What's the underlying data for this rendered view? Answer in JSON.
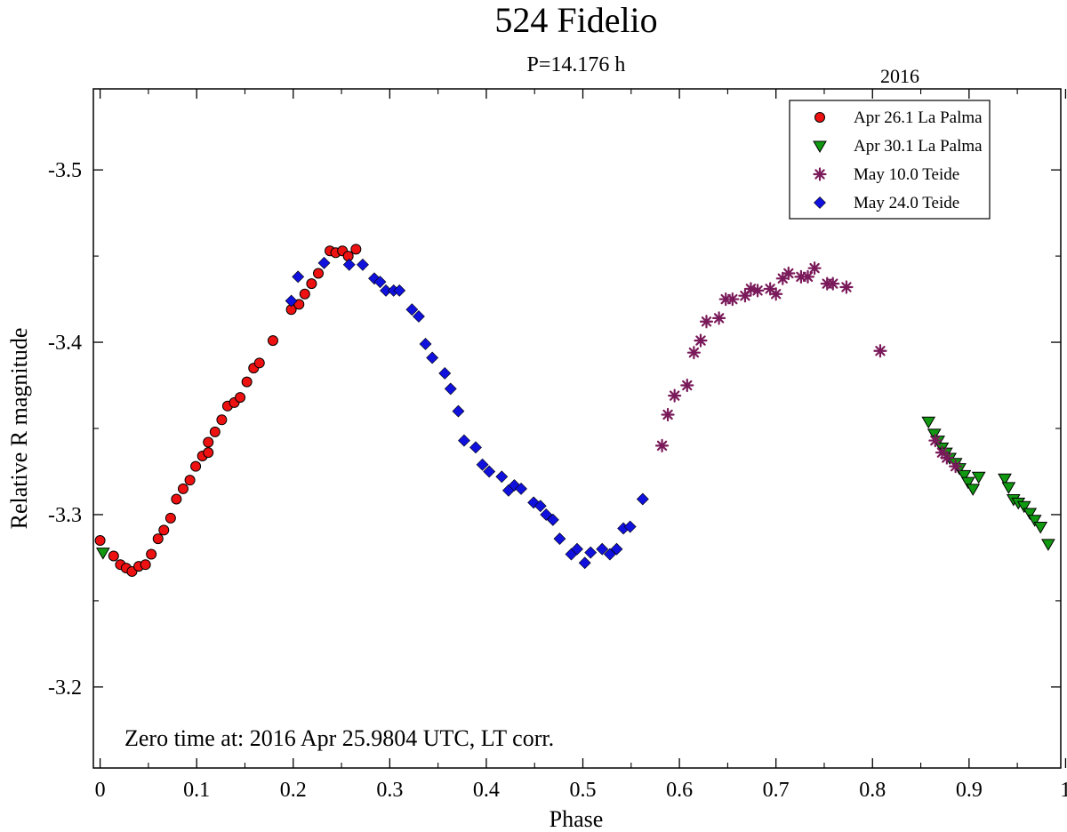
{
  "chart_data": {
    "type": "scatter",
    "title": "524 Fidelio",
    "subtitle": "P=14.176 h",
    "year_label": "2016",
    "annotation": "Zero time at: 2016 Apr 25.9804 UTC, LT corr.",
    "xlabel": "Phase",
    "ylabel": "Relative R magnitude",
    "xlim": [
      -0.007,
      0.995
    ],
    "ylim": [
      -3.547,
      -3.153
    ],
    "x_ticks": [
      0,
      0.1,
      0.2,
      0.3,
      0.4,
      0.5,
      0.6,
      0.7,
      0.8,
      0.9,
      1
    ],
    "x_tick_labels": [
      "0",
      "0.1",
      "0.2",
      "0.3",
      "0.4",
      "0.5",
      "0.6",
      "0.7",
      "0.8",
      "0.9",
      "1"
    ],
    "y_ticks": [
      -3.5,
      -3.4,
      -3.3,
      -3.2
    ],
    "y_tick_labels": [
      "-3.5",
      "-3.4",
      "-3.3",
      "-3.2"
    ],
    "legend_position": "top-right",
    "series": [
      {
        "name": "Apr 26.1 La Palma",
        "marker": "circle",
        "color": "#ee1111",
        "points": [
          [
            0.0,
            -3.285
          ],
          [
            0.014,
            -3.276
          ],
          [
            0.021,
            -3.271
          ],
          [
            0.027,
            -3.269
          ],
          [
            0.033,
            -3.267
          ],
          [
            0.04,
            -3.27
          ],
          [
            0.047,
            -3.271
          ],
          [
            0.053,
            -3.277
          ],
          [
            0.06,
            -3.286
          ],
          [
            0.066,
            -3.291
          ],
          [
            0.073,
            -3.298
          ],
          [
            0.079,
            -3.309
          ],
          [
            0.086,
            -3.315
          ],
          [
            0.093,
            -3.32
          ],
          [
            0.099,
            -3.328
          ],
          [
            0.106,
            -3.334
          ],
          [
            0.112,
            -3.336
          ],
          [
            0.112,
            -3.342
          ],
          [
            0.119,
            -3.348
          ],
          [
            0.126,
            -3.355
          ],
          [
            0.132,
            -3.363
          ],
          [
            0.139,
            -3.365
          ],
          [
            0.145,
            -3.368
          ],
          [
            0.152,
            -3.377
          ],
          [
            0.159,
            -3.385
          ],
          [
            0.165,
            -3.388
          ],
          [
            0.179,
            -3.401
          ],
          [
            0.198,
            -3.419
          ],
          [
            0.206,
            -3.422
          ],
          [
            0.212,
            -3.428
          ],
          [
            0.219,
            -3.434
          ],
          [
            0.226,
            -3.44
          ],
          [
            0.238,
            -3.453
          ],
          [
            0.244,
            -3.452
          ],
          [
            0.251,
            -3.453
          ],
          [
            0.257,
            -3.45
          ],
          [
            0.265,
            -3.454
          ]
        ]
      },
      {
        "name": "Apr 30.1 La Palma",
        "marker": "triangle-down",
        "color": "#119911",
        "points": [
          [
            0.003,
            -3.278
          ],
          [
            0.858,
            -3.354
          ],
          [
            0.864,
            -3.347
          ],
          [
            0.868,
            -3.343
          ],
          [
            0.872,
            -3.339
          ],
          [
            0.876,
            -3.336
          ],
          [
            0.88,
            -3.333
          ],
          [
            0.886,
            -3.33
          ],
          [
            0.89,
            -3.327
          ],
          [
            0.895,
            -3.323
          ],
          [
            0.899,
            -3.319
          ],
          [
            0.904,
            -3.315
          ],
          [
            0.91,
            -3.322
          ],
          [
            0.937,
            -3.321
          ],
          [
            0.941,
            -3.316
          ],
          [
            0.946,
            -3.309
          ],
          [
            0.951,
            -3.307
          ],
          [
            0.957,
            -3.305
          ],
          [
            0.963,
            -3.301
          ],
          [
            0.968,
            -3.297
          ],
          [
            0.974,
            -3.293
          ],
          [
            0.982,
            -3.283
          ]
        ]
      },
      {
        "name": "May 10.0 Teide",
        "marker": "asterisk",
        "color": "#7a1a5a",
        "points": [
          [
            0.582,
            -3.34
          ],
          [
            0.588,
            -3.358
          ],
          [
            0.595,
            -3.369
          ],
          [
            0.608,
            -3.375
          ],
          [
            0.615,
            -3.394
          ],
          [
            0.622,
            -3.401
          ],
          [
            0.628,
            -3.412
          ],
          [
            0.641,
            -3.414
          ],
          [
            0.648,
            -3.425
          ],
          [
            0.655,
            -3.425
          ],
          [
            0.668,
            -3.427
          ],
          [
            0.674,
            -3.431
          ],
          [
            0.681,
            -3.43
          ],
          [
            0.694,
            -3.431
          ],
          [
            0.7,
            -3.428
          ],
          [
            0.707,
            -3.437
          ],
          [
            0.713,
            -3.44
          ],
          [
            0.726,
            -3.438
          ],
          [
            0.733,
            -3.438
          ],
          [
            0.74,
            -3.443
          ],
          [
            0.753,
            -3.434
          ],
          [
            0.759,
            -3.434
          ],
          [
            0.773,
            -3.432
          ],
          [
            0.808,
            -3.395
          ],
          [
            0.865,
            -3.343
          ],
          [
            0.872,
            -3.336
          ],
          [
            0.877,
            -3.333
          ],
          [
            0.886,
            -3.328
          ]
        ]
      },
      {
        "name": "May 24.0 Teide",
        "marker": "diamond",
        "color": "#1111dd",
        "points": [
          [
            0.198,
            -3.424
          ],
          [
            0.205,
            -3.438
          ],
          [
            0.232,
            -3.446
          ],
          [
            0.258,
            -3.445
          ],
          [
            0.272,
            -3.445
          ],
          [
            0.284,
            -3.437
          ],
          [
            0.29,
            -3.435
          ],
          [
            0.296,
            -3.43
          ],
          [
            0.304,
            -3.43
          ],
          [
            0.31,
            -3.43
          ],
          [
            0.323,
            -3.419
          ],
          [
            0.33,
            -3.415
          ],
          [
            0.337,
            -3.399
          ],
          [
            0.344,
            -3.391
          ],
          [
            0.357,
            -3.382
          ],
          [
            0.363,
            -3.373
          ],
          [
            0.371,
            -3.36
          ],
          [
            0.377,
            -3.343
          ],
          [
            0.389,
            -3.339
          ],
          [
            0.396,
            -3.329
          ],
          [
            0.403,
            -3.325
          ],
          [
            0.416,
            -3.322
          ],
          [
            0.423,
            -3.314
          ],
          [
            0.429,
            -3.317
          ],
          [
            0.436,
            -3.315
          ],
          [
            0.449,
            -3.307
          ],
          [
            0.456,
            -3.305
          ],
          [
            0.462,
            -3.3
          ],
          [
            0.469,
            -3.297
          ],
          [
            0.476,
            -3.286
          ],
          [
            0.488,
            -3.277
          ],
          [
            0.494,
            -3.28
          ],
          [
            0.502,
            -3.272
          ],
          [
            0.508,
            -3.278
          ],
          [
            0.52,
            -3.28
          ],
          [
            0.528,
            -3.277
          ],
          [
            0.535,
            -3.28
          ],
          [
            0.542,
            -3.292
          ],
          [
            0.549,
            -3.293
          ],
          [
            0.562,
            -3.309
          ]
        ]
      }
    ]
  }
}
